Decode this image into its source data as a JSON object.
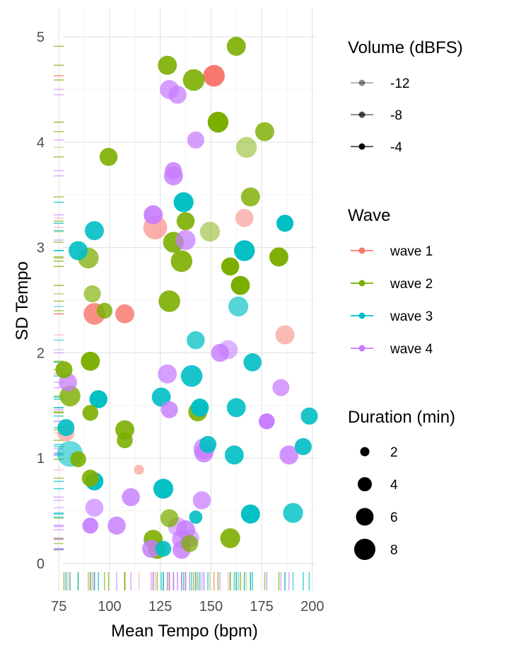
{
  "chart_data": {
    "type": "scatter",
    "xlabel": "Mean Tempo (bpm)",
    "ylabel": "SD Tempo",
    "xlim": [
      72,
      201
    ],
    "ylim": [
      -0.25,
      5.3
    ],
    "x_ticks": [
      75,
      100,
      125,
      150,
      175,
      200
    ],
    "y_ticks": [
      0,
      1,
      2,
      3,
      4,
      5
    ],
    "grid": true,
    "rug": "bottom and left",
    "legend_placement": "right",
    "colors": {
      "wave 1": "#F8766D",
      "wave 2": "#7CAE00",
      "wave 3": "#00BFC4",
      "wave 4": "#C77CFF"
    },
    "legends": {
      "volume": {
        "title": "Volume (dBFS)",
        "entries": [
          "-12",
          "-8",
          "-4"
        ]
      },
      "wave": {
        "title": "Wave",
        "entries": [
          "wave 1",
          "wave 2",
          "wave 3",
          "wave 4"
        ]
      },
      "duration": {
        "title": "Duration (min)",
        "entries": [
          "2",
          "4",
          "6",
          "8"
        ]
      }
    },
    "series": [
      {
        "name": "wave 1",
        "points": [
          {
            "x": 151.5,
            "y": 4.63,
            "d": 5.5,
            "v": -6
          },
          {
            "x": 122.5,
            "y": 3.19,
            "d": 7.0,
            "v": -11
          },
          {
            "x": 166.5,
            "y": 3.28,
            "d": 3.5,
            "v": -12
          },
          {
            "x": 92.5,
            "y": 2.37,
            "d": 5.5,
            "v": -8
          },
          {
            "x": 107.5,
            "y": 2.37,
            "d": 4.0,
            "v": -8
          },
          {
            "x": 186.5,
            "y": 2.17,
            "d": 4.0,
            "v": -12
          },
          {
            "x": 78.5,
            "y": 1.24,
            "d": 3.0,
            "v": -12
          },
          {
            "x": 114.5,
            "y": 0.89,
            "d": 0.6,
            "v": -12
          }
        ]
      },
      {
        "name": "wave 2",
        "points": [
          {
            "x": 162.5,
            "y": 4.91,
            "d": 4.0,
            "v": -7
          },
          {
            "x": 128.5,
            "y": 4.73,
            "d": 4.0,
            "v": -7
          },
          {
            "x": 141.5,
            "y": 4.59,
            "d": 5.5,
            "v": -7
          },
          {
            "x": 153.5,
            "y": 4.19,
            "d": 5.0,
            "v": -5
          },
          {
            "x": 176.5,
            "y": 4.1,
            "d": 4.0,
            "v": -8
          },
          {
            "x": 99.5,
            "y": 3.86,
            "d": 3.5,
            "v": -7
          },
          {
            "x": 167.5,
            "y": 3.95,
            "d": 5.0,
            "v": -12
          },
          {
            "x": 169.5,
            "y": 3.48,
            "d": 4.0,
            "v": -8
          },
          {
            "x": 137.5,
            "y": 3.25,
            "d": 3.5,
            "v": -7
          },
          {
            "x": 149.5,
            "y": 3.15,
            "d": 4.5,
            "v": -12
          },
          {
            "x": 131.5,
            "y": 3.05,
            "d": 5.0,
            "v": -7
          },
          {
            "x": 89.5,
            "y": 2.9,
            "d": 5.0,
            "v": -9
          },
          {
            "x": 135.5,
            "y": 2.87,
            "d": 5.5,
            "v": -7
          },
          {
            "x": 159.5,
            "y": 2.82,
            "d": 3.5,
            "v": -5
          },
          {
            "x": 183.5,
            "y": 2.91,
            "d": 4.0,
            "v": -6
          },
          {
            "x": 164.5,
            "y": 2.64,
            "d": 4.0,
            "v": -5
          },
          {
            "x": 91.5,
            "y": 2.56,
            "d": 3.0,
            "v": -10
          },
          {
            "x": 129.5,
            "y": 2.49,
            "d": 5.5,
            "v": -7
          },
          {
            "x": 97.5,
            "y": 2.4,
            "d": 2.5,
            "v": -8
          },
          {
            "x": 90.5,
            "y": 1.92,
            "d": 4.0,
            "v": -6
          },
          {
            "x": 77.5,
            "y": 1.84,
            "d": 3.0,
            "v": -7
          },
          {
            "x": 80.5,
            "y": 1.59,
            "d": 5.0,
            "v": -8
          },
          {
            "x": 90.5,
            "y": 1.43,
            "d": 2.5,
            "v": -7
          },
          {
            "x": 143.5,
            "y": 1.44,
            "d": 4.0,
            "v": -7
          },
          {
            "x": 107.5,
            "y": 1.27,
            "d": 4.0,
            "v": -7
          },
          {
            "x": 107.5,
            "y": 1.17,
            "d": 2.5,
            "v": -7
          },
          {
            "x": 84.5,
            "y": 0.99,
            "d": 2.5,
            "v": -7
          },
          {
            "x": 90.5,
            "y": 0.81,
            "d": 3.0,
            "v": -7
          },
          {
            "x": 129.5,
            "y": 0.43,
            "d": 3.5,
            "v": -9
          },
          {
            "x": 121.5,
            "y": 0.23,
            "d": 4.0,
            "v": -7
          },
          {
            "x": 159.5,
            "y": 0.24,
            "d": 4.5,
            "v": -7
          },
          {
            "x": 123.5,
            "y": 0.13,
            "d": 3.5,
            "v": -7
          },
          {
            "x": 139.5,
            "y": 0.19,
            "d": 3.0,
            "v": -9
          }
        ]
      },
      {
        "name": "wave 3",
        "points": [
          {
            "x": 136.5,
            "y": 3.43,
            "d": 4.5,
            "v": -6
          },
          {
            "x": 186.5,
            "y": 3.23,
            "d": 3.0,
            "v": -5
          },
          {
            "x": 92.5,
            "y": 3.16,
            "d": 4.0,
            "v": -7
          },
          {
            "x": 84.5,
            "y": 2.97,
            "d": 4.0,
            "v": -7
          },
          {
            "x": 166.5,
            "y": 2.97,
            "d": 5.0,
            "v": -6
          },
          {
            "x": 163.5,
            "y": 2.44,
            "d": 4.5,
            "v": -10
          },
          {
            "x": 142.5,
            "y": 2.12,
            "d": 3.5,
            "v": -9
          },
          {
            "x": 170.5,
            "y": 1.91,
            "d": 3.5,
            "v": -7
          },
          {
            "x": 140.5,
            "y": 1.78,
            "d": 5.5,
            "v": -7
          },
          {
            "x": 125.5,
            "y": 1.58,
            "d": 4.0,
            "v": -7
          },
          {
            "x": 94.5,
            "y": 1.56,
            "d": 3.5,
            "v": -6
          },
          {
            "x": 144.5,
            "y": 1.48,
            "d": 3.5,
            "v": -6
          },
          {
            "x": 162.5,
            "y": 1.48,
            "d": 4.0,
            "v": -7
          },
          {
            "x": 198.5,
            "y": 1.4,
            "d": 3.0,
            "v": -7
          },
          {
            "x": 78.5,
            "y": 1.29,
            "d": 3.0,
            "v": -7
          },
          {
            "x": 148.5,
            "y": 1.13,
            "d": 3.0,
            "v": -7
          },
          {
            "x": 195.5,
            "y": 1.11,
            "d": 3.0,
            "v": -7
          },
          {
            "x": 80.5,
            "y": 1.04,
            "d": 8.5,
            "v": -11
          },
          {
            "x": 161.5,
            "y": 1.03,
            "d": 4.0,
            "v": -7
          },
          {
            "x": 92.5,
            "y": 0.78,
            "d": 3.5,
            "v": -6
          },
          {
            "x": 126.5,
            "y": 0.71,
            "d": 4.5,
            "v": -6
          },
          {
            "x": 142.5,
            "y": 0.44,
            "d": 1.5,
            "v": -7
          },
          {
            "x": 169.5,
            "y": 0.47,
            "d": 4.0,
            "v": -6
          },
          {
            "x": 190.5,
            "y": 0.48,
            "d": 4.5,
            "v": -8
          },
          {
            "x": 126.5,
            "y": 0.14,
            "d": 2.5,
            "v": -7
          }
        ]
      },
      {
        "name": "wave 4",
        "points": [
          {
            "x": 129.5,
            "y": 4.5,
            "d": 4.0,
            "v": -9
          },
          {
            "x": 133.5,
            "y": 4.45,
            "d": 3.5,
            "v": -9
          },
          {
            "x": 142.5,
            "y": 4.02,
            "d": 3.0,
            "v": -9
          },
          {
            "x": 131.5,
            "y": 3.73,
            "d": 3.0,
            "v": -8
          },
          {
            "x": 131.5,
            "y": 3.68,
            "d": 4.0,
            "v": -8
          },
          {
            "x": 121.5,
            "y": 3.31,
            "d": 4.0,
            "v": -7
          },
          {
            "x": 137.5,
            "y": 3.07,
            "d": 4.5,
            "v": -9
          },
          {
            "x": 158.5,
            "y": 2.03,
            "d": 4.0,
            "v": -11
          },
          {
            "x": 154.5,
            "y": 2.0,
            "d": 3.5,
            "v": -8
          },
          {
            "x": 128.5,
            "y": 1.8,
            "d": 4.0,
            "v": -9
          },
          {
            "x": 79.5,
            "y": 1.72,
            "d": 3.5,
            "v": -9
          },
          {
            "x": 184.5,
            "y": 1.67,
            "d": 3.0,
            "v": -9
          },
          {
            "x": 129.5,
            "y": 1.46,
            "d": 3.0,
            "v": -8
          },
          {
            "x": 177.5,
            "y": 1.35,
            "d": 2.5,
            "v": -6
          },
          {
            "x": 146.5,
            "y": 1.09,
            "d": 5.0,
            "v": -9
          },
          {
            "x": 146.5,
            "y": 1.05,
            "d": 4.0,
            "v": -8
          },
          {
            "x": 188.5,
            "y": 1.03,
            "d": 4.0,
            "v": -8
          },
          {
            "x": 110.5,
            "y": 0.63,
            "d": 3.5,
            "v": -8
          },
          {
            "x": 145.5,
            "y": 0.6,
            "d": 3.5,
            "v": -9
          },
          {
            "x": 92.5,
            "y": 0.53,
            "d": 3.5,
            "v": -10
          },
          {
            "x": 90.5,
            "y": 0.36,
            "d": 2.5,
            "v": -7
          },
          {
            "x": 103.5,
            "y": 0.36,
            "d": 3.5,
            "v": -8
          },
          {
            "x": 133.5,
            "y": 0.35,
            "d": 4.0,
            "v": -11
          },
          {
            "x": 137.5,
            "y": 0.32,
            "d": 4.0,
            "v": -8
          },
          {
            "x": 135.5,
            "y": 0.23,
            "d": 4.0,
            "v": -9
          },
          {
            "x": 139.5,
            "y": 0.24,
            "d": 4.0,
            "v": -11
          },
          {
            "x": 120.5,
            "y": 0.14,
            "d": 3.5,
            "v": -8
          },
          {
            "x": 135.5,
            "y": 0.13,
            "d": 3.5,
            "v": -8
          }
        ]
      }
    ]
  }
}
